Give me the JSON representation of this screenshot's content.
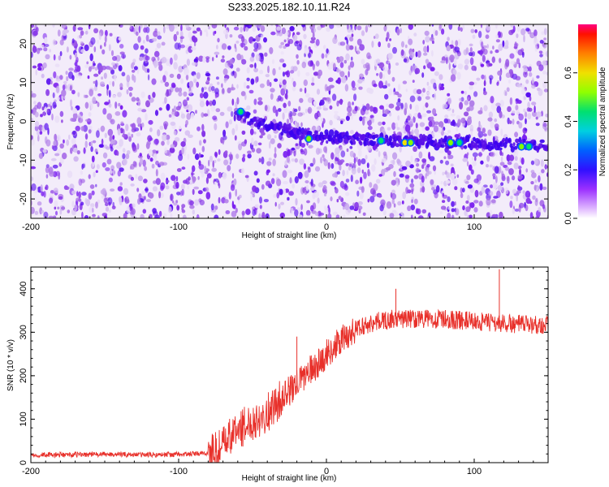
{
  "title": "S233.2025.182.10.11.R24",
  "colors": {
    "snr_line": "#e8302a",
    "colormap": [
      "#ffffff",
      "#efe6f7",
      "#c9a3ec",
      "#9b4ae6",
      "#6a10e8",
      "#2b00f0",
      "#0050ff",
      "#00c8e8",
      "#00e070",
      "#80ff00",
      "#f0e000",
      "#ff9000",
      "#ff2000",
      "#ff0080"
    ]
  },
  "chart_data": [
    {
      "type": "heatmap",
      "title": "S233.2025.182.10.11.R24",
      "xlabel": "Height of straight line (km)",
      "ylabel": "Frequency (Hz)",
      "xlim": [
        -200,
        150
      ],
      "ylim": [
        -25,
        25
      ],
      "x_ticks": [
        -200,
        -100,
        0,
        100
      ],
      "x_tick_labels": [
        "-200",
        "-100",
        "0",
        "100"
      ],
      "y_ticks": [
        -20,
        -10,
        0,
        10,
        20
      ],
      "y_tick_labels": [
        "-20",
        "-10",
        "0",
        "10",
        "20"
      ],
      "signal_track": {
        "x": [
          -62,
          -40,
          -20,
          0,
          20,
          40,
          60,
          80,
          100,
          120,
          150
        ],
        "frequency_hz": [
          2,
          -1,
          -3,
          -4,
          -4.5,
          -5,
          -5,
          -5.5,
          -5.5,
          -6,
          -6
        ]
      },
      "hot_spots": [
        {
          "x": -58,
          "frequency_hz": 2.5,
          "amplitude": 0.35
        },
        {
          "x": -12,
          "frequency_hz": -4.5,
          "amplitude": 0.45
        },
        {
          "x": 37,
          "frequency_hz": -5,
          "amplitude": 0.35
        },
        {
          "x": 53,
          "frequency_hz": -5.5,
          "amplitude": 0.6
        },
        {
          "x": 57,
          "frequency_hz": -5.5,
          "amplitude": 0.45
        },
        {
          "x": 84,
          "frequency_hz": -5.5,
          "amplitude": 0.5
        },
        {
          "x": 90,
          "frequency_hz": -5.5,
          "amplitude": 0.35
        },
        {
          "x": 132,
          "frequency_hz": -6.5,
          "amplitude": 0.5
        },
        {
          "x": 137,
          "frequency_hz": -6.5,
          "amplitude": 0.35
        }
      ],
      "colorbar": {
        "label": "Normalized spectral amplitude",
        "range": [
          0,
          0.8
        ],
        "ticks": [
          0,
          0.2,
          0.4,
          0.6
        ],
        "tick_labels": [
          "0.0",
          "0.2",
          "0.4",
          "0.6"
        ]
      }
    },
    {
      "type": "line",
      "xlabel": "Height of straight line (km)",
      "ylabel": "SNR (10 * v/v)",
      "xlim": [
        -200,
        150
      ],
      "ylim": [
        0,
        450
      ],
      "x_ticks": [
        -200,
        -100,
        0,
        100
      ],
      "x_tick_labels": [
        "-200",
        "-100",
        "0",
        "100"
      ],
      "y_ticks": [
        0,
        100,
        200,
        300,
        400
      ],
      "y_tick_labels": [
        "0",
        "100",
        "200",
        "300",
        "400"
      ],
      "series": [
        {
          "x": [
            -200,
            -180,
            -160,
            -140,
            -120,
            -100,
            -90,
            -80,
            -75,
            -70,
            -65,
            -60,
            -55,
            -50,
            -45,
            -40,
            -35,
            -30,
            -25,
            -20,
            -15,
            -10,
            -5,
            0,
            5,
            10,
            15,
            20,
            25,
            30,
            35,
            40,
            45,
            50,
            60,
            70,
            80,
            90,
            100,
            110,
            120,
            130,
            140,
            150
          ],
          "values": [
            18,
            18,
            19,
            19,
            18,
            19,
            20,
            22,
            28,
            40,
            60,
            75,
            85,
            95,
            105,
            115,
            130,
            150,
            165,
            180,
            200,
            215,
            230,
            250,
            265,
            280,
            295,
            305,
            315,
            320,
            325,
            328,
            330,
            330,
            332,
            330,
            330,
            328,
            325,
            322,
            320,
            318,
            318,
            317
          ]
        }
      ],
      "annotated_peaks": [
        {
          "x": -20,
          "value": 290
        },
        {
          "x": 47,
          "value": 400
        },
        {
          "x": 117,
          "value": 445
        }
      ]
    }
  ]
}
